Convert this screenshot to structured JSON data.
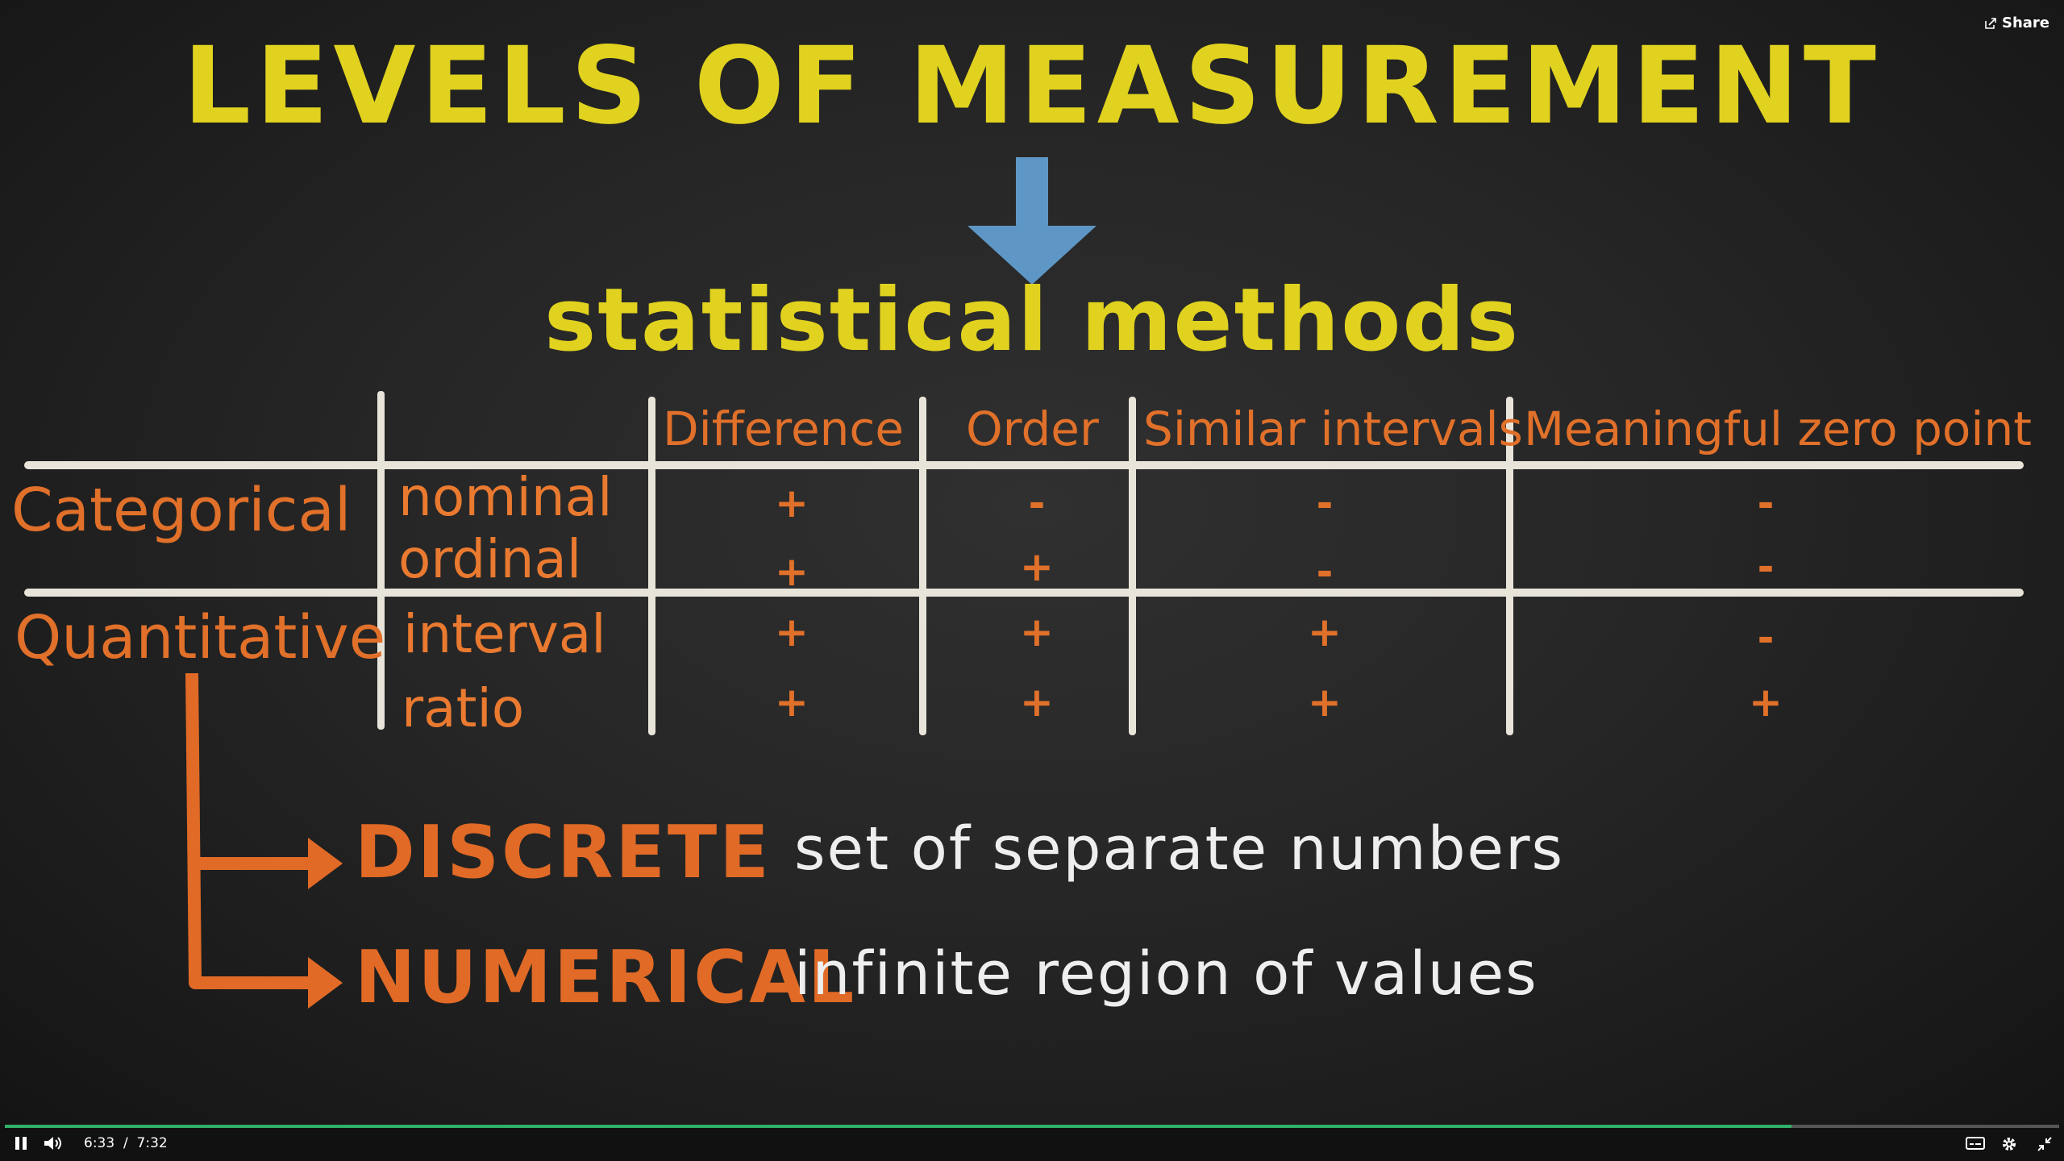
{
  "slide": {
    "title": "LEVELS OF MEASUREMENT",
    "subtitle": "statistical methods",
    "arrow_color": "#5e97c6",
    "table": {
      "headers": [
        "Difference",
        "Order",
        "Similar intervals",
        "Meaningful zero point"
      ],
      "groups": [
        "Categorical",
        "Quantitative"
      ],
      "rows": [
        {
          "label": "nominal",
          "cells": [
            "+",
            "-",
            "-",
            "-"
          ]
        },
        {
          "label": "ordinal",
          "cells": [
            "+",
            "+",
            "-",
            "-"
          ]
        },
        {
          "label": "interval",
          "cells": [
            "+",
            "+",
            "+",
            "-"
          ]
        },
        {
          "label": "ratio",
          "cells": [
            "+",
            "+",
            "+",
            "+"
          ]
        }
      ]
    },
    "types": [
      {
        "name": "DISCRETE",
        "desc": "set of separate numbers"
      },
      {
        "name": "NUMERICAL",
        "desc": "infinite region of values"
      }
    ]
  },
  "share_label": "Share",
  "player": {
    "current_time": "6:33",
    "separator": "/",
    "duration": "7:32",
    "progress": 0.8697,
    "accent": "#2fb06a"
  }
}
